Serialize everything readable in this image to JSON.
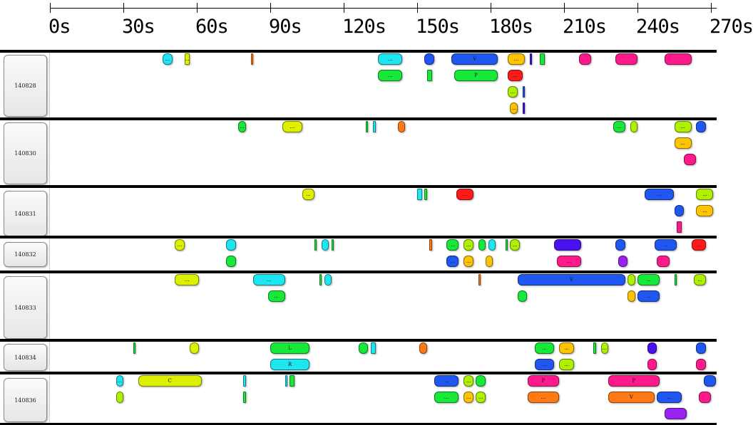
{
  "timeline": {
    "ticks": [
      "0s",
      "30s",
      "60s",
      "90s",
      "120s",
      "150s",
      "180s",
      "210s",
      "240s",
      "270s"
    ]
  },
  "colors": {
    "cyan": "#1ee6f0",
    "yellow": "#dcf000",
    "orange": "#ff7a14",
    "blue": "#1f57f0",
    "green": "#18e83a",
    "red": "#ff1a1a",
    "violet": "#4a12f0",
    "pink": "#ff1a8c",
    "amber": "#ffc400",
    "lime": "#aef000",
    "purple": "#9a22f0"
  },
  "rows": [
    {
      "label": "140828",
      "events": [
        {
          "s": 46,
          "e": 50,
          "lane": 0,
          "c": "cyan",
          "t": "..."
        },
        {
          "s": 55,
          "e": 57,
          "lane": 0,
          "c": "yellow",
          "t": "..."
        },
        {
          "s": 82,
          "e": 83,
          "lane": 0,
          "c": "orange",
          "t": ""
        },
        {
          "s": 134,
          "e": 144,
          "lane": 0,
          "c": "cyan",
          "t": "..."
        },
        {
          "s": 153,
          "e": 157,
          "lane": 0,
          "c": "blue",
          "t": ""
        },
        {
          "s": 164,
          "e": 183,
          "lane": 0,
          "c": "blue",
          "t": "V"
        },
        {
          "s": 187,
          "e": 194,
          "lane": 0,
          "c": "amber",
          "t": "..."
        },
        {
          "s": 196,
          "e": 197,
          "lane": 0,
          "c": "violet",
          "t": ""
        },
        {
          "s": 200,
          "e": 202,
          "lane": 0,
          "c": "green",
          "t": ""
        },
        {
          "s": 216,
          "e": 221,
          "lane": 0,
          "c": "pink",
          "t": ""
        },
        {
          "s": 231,
          "e": 240,
          "lane": 0,
          "c": "pink",
          "t": ""
        },
        {
          "s": 251,
          "e": 262,
          "lane": 0,
          "c": "pink",
          "t": ""
        },
        {
          "s": 134,
          "e": 144,
          "lane": 1,
          "c": "green",
          "t": "..."
        },
        {
          "s": 154,
          "e": 156,
          "lane": 1,
          "c": "green",
          "t": ""
        },
        {
          "s": 165,
          "e": 183,
          "lane": 1,
          "c": "green",
          "t": "P"
        },
        {
          "s": 187,
          "e": 193,
          "lane": 1,
          "c": "red",
          "t": "..."
        },
        {
          "s": 187,
          "e": 191,
          "lane": 2,
          "c": "lime",
          "t": "..."
        },
        {
          "s": 193,
          "e": 194,
          "lane": 2,
          "c": "blue",
          "t": ""
        },
        {
          "s": 188,
          "e": 191,
          "lane": 3,
          "c": "amber",
          "t": "..."
        },
        {
          "s": 193,
          "e": 194,
          "lane": 3,
          "c": "violet",
          "t": ""
        }
      ]
    },
    {
      "label": "140830",
      "events": [
        {
          "s": 77,
          "e": 80,
          "lane": 0,
          "c": "green",
          "t": "..."
        },
        {
          "s": 95,
          "e": 103,
          "lane": 0,
          "c": "yellow",
          "t": "..."
        },
        {
          "s": 129,
          "e": 130,
          "lane": 0,
          "c": "green",
          "t": ""
        },
        {
          "s": 132,
          "e": 133,
          "lane": 0,
          "c": "cyan",
          "t": ""
        },
        {
          "s": 142,
          "e": 145,
          "lane": 0,
          "c": "orange",
          "t": ""
        },
        {
          "s": 230,
          "e": 235,
          "lane": 0,
          "c": "green",
          "t": "..."
        },
        {
          "s": 237,
          "e": 240,
          "lane": 0,
          "c": "lime",
          "t": ""
        },
        {
          "s": 255,
          "e": 262,
          "lane": 0,
          "c": "lime",
          "t": "..."
        },
        {
          "s": 264,
          "e": 268,
          "lane": 0,
          "c": "blue",
          "t": ""
        },
        {
          "s": 255,
          "e": 262,
          "lane": 1,
          "c": "amber",
          "t": "..."
        },
        {
          "s": 259,
          "e": 264,
          "lane": 2,
          "c": "pink",
          "t": ""
        }
      ]
    },
    {
      "label": "140831",
      "events": [
        {
          "s": 103,
          "e": 108,
          "lane": 0,
          "c": "yellow",
          "t": "..."
        },
        {
          "s": 150,
          "e": 152,
          "lane": 0,
          "c": "cyan",
          "t": ""
        },
        {
          "s": 153,
          "e": 154,
          "lane": 0,
          "c": "green",
          "t": ""
        },
        {
          "s": 166,
          "e": 173,
          "lane": 0,
          "c": "red",
          "t": "..."
        },
        {
          "s": 243,
          "e": 255,
          "lane": 0,
          "c": "blue",
          "t": "..."
        },
        {
          "s": 264,
          "e": 271,
          "lane": 0,
          "c": "lime",
          "t": "..."
        },
        {
          "s": 255,
          "e": 259,
          "lane": 1,
          "c": "blue",
          "t": ""
        },
        {
          "s": 264,
          "e": 271,
          "lane": 1,
          "c": "amber",
          "t": "..."
        },
        {
          "s": 256,
          "e": 258,
          "lane": 2,
          "c": "pink",
          "t": ""
        }
      ]
    },
    {
      "label": "140832",
      "events": [
        {
          "s": 51,
          "e": 55,
          "lane": 0,
          "c": "yellow",
          "t": "..."
        },
        {
          "s": 72,
          "e": 76,
          "lane": 0,
          "c": "cyan",
          "t": ""
        },
        {
          "s": 108,
          "e": 109,
          "lane": 0,
          "c": "green",
          "t": ""
        },
        {
          "s": 111,
          "e": 114,
          "lane": 0,
          "c": "cyan",
          "t": ""
        },
        {
          "s": 115,
          "e": 116,
          "lane": 0,
          "c": "green",
          "t": ""
        },
        {
          "s": 155,
          "e": 156,
          "lane": 0,
          "c": "orange",
          "t": ""
        },
        {
          "s": 162,
          "e": 167,
          "lane": 0,
          "c": "green",
          "t": "..."
        },
        {
          "s": 169,
          "e": 173,
          "lane": 0,
          "c": "lime",
          "t": "..."
        },
        {
          "s": 175,
          "e": 178,
          "lane": 0,
          "c": "green",
          "t": ""
        },
        {
          "s": 179,
          "e": 182,
          "lane": 0,
          "c": "cyan",
          "t": ""
        },
        {
          "s": 186,
          "e": 187,
          "lane": 0,
          "c": "green",
          "t": ""
        },
        {
          "s": 188,
          "e": 192,
          "lane": 0,
          "c": "lime",
          "t": "..."
        },
        {
          "s": 206,
          "e": 217,
          "lane": 0,
          "c": "violet",
          "t": ""
        },
        {
          "s": 231,
          "e": 235,
          "lane": 0,
          "c": "blue",
          "t": ""
        },
        {
          "s": 247,
          "e": 256,
          "lane": 0,
          "c": "blue",
          "t": "..."
        },
        {
          "s": 262,
          "e": 268,
          "lane": 0,
          "c": "red",
          "t": "..."
        },
        {
          "s": 72,
          "e": 76,
          "lane": 1,
          "c": "green",
          "t": ""
        },
        {
          "s": 162,
          "e": 167,
          "lane": 1,
          "c": "blue",
          "t": "..."
        },
        {
          "s": 169,
          "e": 173,
          "lane": 1,
          "c": "amber",
          "t": "..."
        },
        {
          "s": 178,
          "e": 181,
          "lane": 1,
          "c": "amber",
          "t": ""
        },
        {
          "s": 207,
          "e": 217,
          "lane": 1,
          "c": "pink",
          "t": "..."
        },
        {
          "s": 232,
          "e": 236,
          "lane": 1,
          "c": "purple",
          "t": ""
        },
        {
          "s": 248,
          "e": 253,
          "lane": 1,
          "c": "pink",
          "t": ""
        }
      ]
    },
    {
      "label": "140833",
      "events": [
        {
          "s": 51,
          "e": 61,
          "lane": 0,
          "c": "yellow",
          "t": "..."
        },
        {
          "s": 83,
          "e": 96,
          "lane": 0,
          "c": "cyan",
          "t": "..."
        },
        {
          "s": 110,
          "e": 111,
          "lane": 0,
          "c": "green",
          "t": ""
        },
        {
          "s": 112,
          "e": 115,
          "lane": 0,
          "c": "cyan",
          "t": ""
        },
        {
          "s": 175,
          "e": 176,
          "lane": 0,
          "c": "orange",
          "t": ""
        },
        {
          "s": 191,
          "e": 235,
          "lane": 0,
          "c": "blue",
          "t": "V"
        },
        {
          "s": 236,
          "e": 239,
          "lane": 0,
          "c": "lime",
          "t": ""
        },
        {
          "s": 240,
          "e": 249,
          "lane": 0,
          "c": "green",
          "t": "..."
        },
        {
          "s": 255,
          "e": 256,
          "lane": 0,
          "c": "green",
          "t": ""
        },
        {
          "s": 263,
          "e": 268,
          "lane": 0,
          "c": "lime",
          "t": "..."
        },
        {
          "s": 89,
          "e": 96,
          "lane": 1,
          "c": "green",
          "t": "..."
        },
        {
          "s": 191,
          "e": 195,
          "lane": 1,
          "c": "green",
          "t": ""
        },
        {
          "s": 236,
          "e": 239,
          "lane": 1,
          "c": "amber",
          "t": ""
        },
        {
          "s": 240,
          "e": 249,
          "lane": 1,
          "c": "blue",
          "t": "..."
        }
      ]
    },
    {
      "label": "140834",
      "events": [
        {
          "s": 34,
          "e": 35,
          "lane": 0,
          "c": "green",
          "t": ""
        },
        {
          "s": 57,
          "e": 61,
          "lane": 0,
          "c": "yellow",
          "t": ""
        },
        {
          "s": 90,
          "e": 106,
          "lane": 0,
          "c": "green",
          "t": "L"
        },
        {
          "s": 126,
          "e": 130,
          "lane": 0,
          "c": "green",
          "t": ""
        },
        {
          "s": 131,
          "e": 133,
          "lane": 0,
          "c": "cyan",
          "t": ""
        },
        {
          "s": 151,
          "e": 154,
          "lane": 0,
          "c": "orange",
          "t": ""
        },
        {
          "s": 198,
          "e": 206,
          "lane": 0,
          "c": "green",
          "t": "..."
        },
        {
          "s": 208,
          "e": 214,
          "lane": 0,
          "c": "amber",
          "t": "..."
        },
        {
          "s": 222,
          "e": 223,
          "lane": 0,
          "c": "green",
          "t": ""
        },
        {
          "s": 225,
          "e": 228,
          "lane": 0,
          "c": "lime",
          "t": "..."
        },
        {
          "s": 244,
          "e": 248,
          "lane": 0,
          "c": "violet",
          "t": ""
        },
        {
          "s": 264,
          "e": 268,
          "lane": 0,
          "c": "blue",
          "t": ""
        },
        {
          "s": 90,
          "e": 106,
          "lane": 1,
          "c": "cyan",
          "t": "R"
        },
        {
          "s": 198,
          "e": 206,
          "lane": 1,
          "c": "blue",
          "t": "..."
        },
        {
          "s": 208,
          "e": 214,
          "lane": 1,
          "c": "lime",
          "t": "..."
        },
        {
          "s": 244,
          "e": 248,
          "lane": 1,
          "c": "pink",
          "t": ""
        },
        {
          "s": 264,
          "e": 268,
          "lane": 1,
          "c": "pink",
          "t": ""
        }
      ]
    },
    {
      "label": "140836",
      "events": [
        {
          "s": 27,
          "e": 30,
          "lane": 0,
          "c": "cyan",
          "t": "..."
        },
        {
          "s": 36,
          "e": 62,
          "lane": 0,
          "c": "yellow",
          "t": "C"
        },
        {
          "s": 79,
          "e": 80,
          "lane": 0,
          "c": "cyan",
          "t": ""
        },
        {
          "s": 96,
          "e": 97,
          "lane": 0,
          "c": "cyan",
          "t": ""
        },
        {
          "s": 98,
          "e": 100,
          "lane": 0,
          "c": "green",
          "t": ""
        },
        {
          "s": 157,
          "e": 167,
          "lane": 0,
          "c": "blue",
          "t": "..."
        },
        {
          "s": 169,
          "e": 173,
          "lane": 0,
          "c": "lime",
          "t": "..."
        },
        {
          "s": 174,
          "e": 178,
          "lane": 0,
          "c": "green",
          "t": ""
        },
        {
          "s": 195,
          "e": 208,
          "lane": 0,
          "c": "pink",
          "t": "P"
        },
        {
          "s": 228,
          "e": 249,
          "lane": 0,
          "c": "pink",
          "t": "P"
        },
        {
          "s": 267,
          "e": 272,
          "lane": 0,
          "c": "blue",
          "t": ""
        },
        {
          "s": 27,
          "e": 30,
          "lane": 1,
          "c": "lime",
          "t": ""
        },
        {
          "s": 79,
          "e": 80,
          "lane": 1,
          "c": "green",
          "t": ""
        },
        {
          "s": 157,
          "e": 167,
          "lane": 1,
          "c": "green",
          "t": "..."
        },
        {
          "s": 169,
          "e": 173,
          "lane": 1,
          "c": "amber",
          "t": "..."
        },
        {
          "s": 174,
          "e": 178,
          "lane": 1,
          "c": "lime",
          "t": "..."
        },
        {
          "s": 195,
          "e": 208,
          "lane": 1,
          "c": "orange",
          "t": "..."
        },
        {
          "s": 228,
          "e": 247,
          "lane": 1,
          "c": "orange",
          "t": "V"
        },
        {
          "s": 248,
          "e": 258,
          "lane": 1,
          "c": "blue",
          "t": "..."
        },
        {
          "s": 265,
          "e": 270,
          "lane": 1,
          "c": "pink",
          "t": ""
        },
        {
          "s": 251,
          "e": 260,
          "lane": 2,
          "c": "purple",
          "t": ""
        }
      ]
    }
  ]
}
